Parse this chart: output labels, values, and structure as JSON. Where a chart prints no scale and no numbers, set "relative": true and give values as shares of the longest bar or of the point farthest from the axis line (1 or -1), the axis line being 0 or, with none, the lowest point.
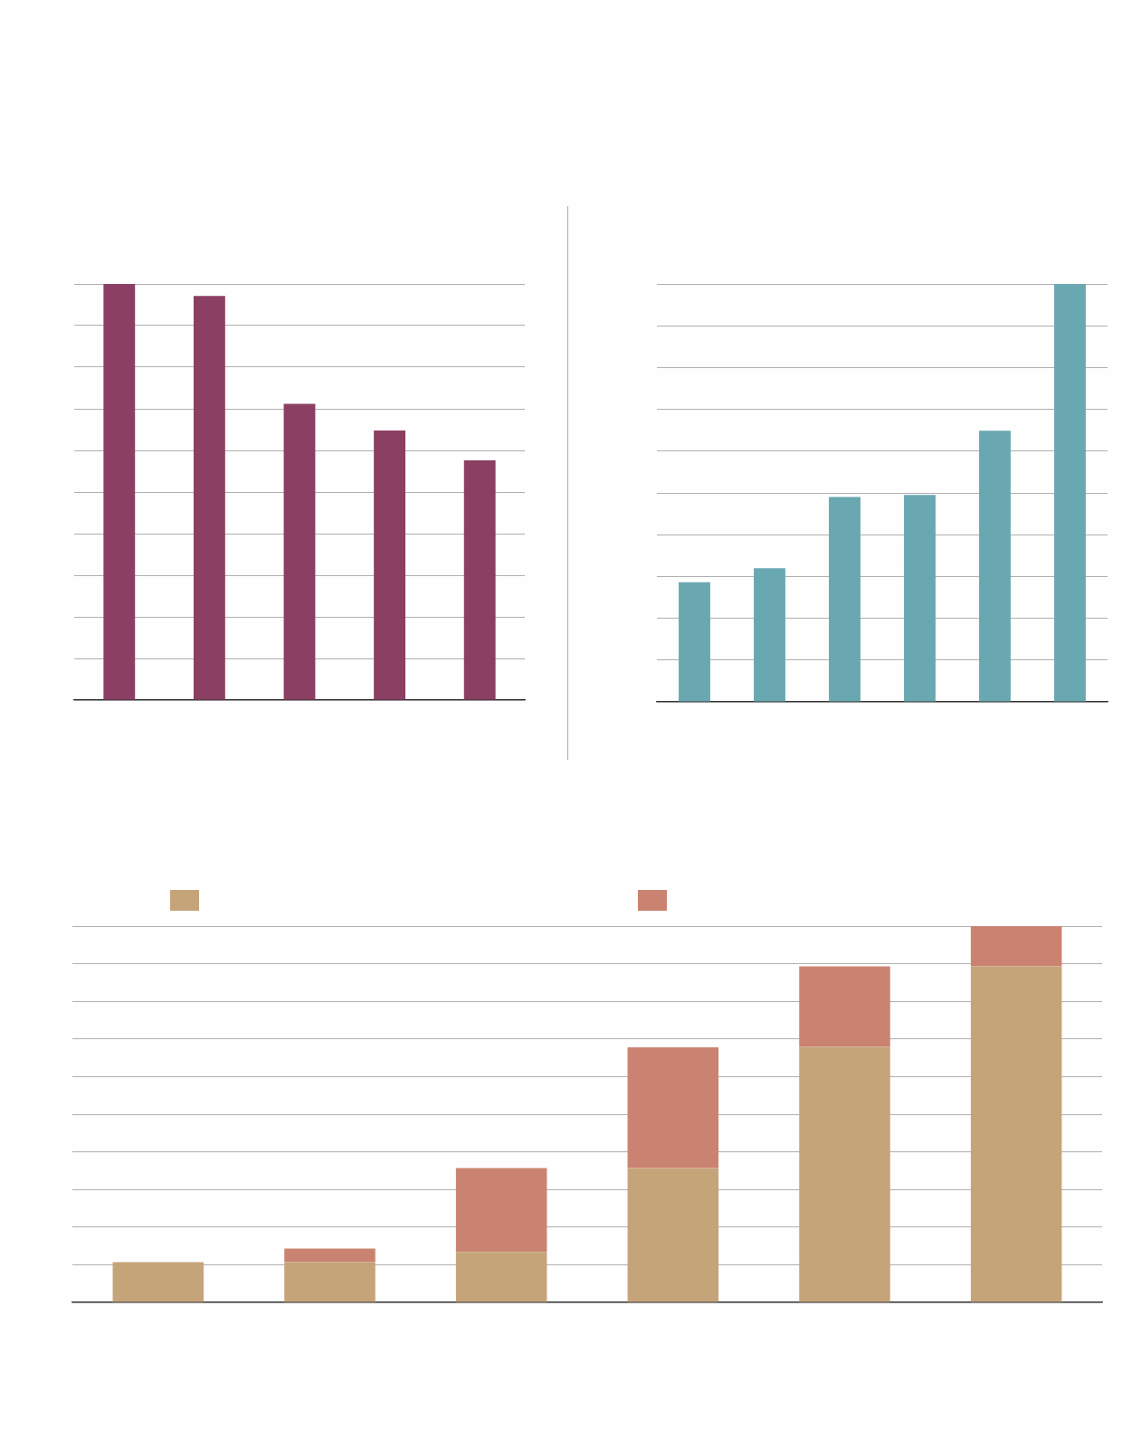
{
  "chart_data": [
    {
      "type": "bar",
      "relative": true,
      "categories": [
        null,
        null,
        null,
        null,
        null
      ],
      "values": [
        1,
        0.971,
        0.712,
        0.648,
        0.576
      ],
      "color": "#8b3f62",
      "grid": "y"
    },
    {
      "type": "bar",
      "relative": true,
      "categories": [
        null,
        null,
        null,
        null,
        null,
        null
      ],
      "values": [
        0.286,
        0.32,
        0.49,
        0.495,
        0.649,
        1
      ],
      "color": "#69a8b1",
      "grid": "y"
    },
    {
      "type": "bar",
      "relative": true,
      "stacked": true,
      "categories": [
        null,
        null,
        null,
        null,
        null,
        null
      ],
      "series": [
        {
          "color": "#c6a47a",
          "values": [
            0.107,
            0.107,
            0.134,
            0.357,
            0.679,
            0.893
          ]
        },
        {
          "color": "#cb8371",
          "values": [
            0,
            0.036,
            0.223,
            0.321,
            0.214,
            0.107
          ]
        }
      ],
      "grid": "y"
    }
  ]
}
